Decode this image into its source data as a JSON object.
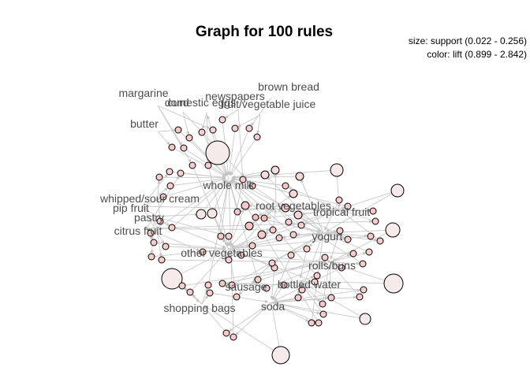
{
  "title": "Graph for 100 rules",
  "legend": {
    "size_line": "size: support (0.022 - 0.256)",
    "color_line": "color: lift (0.899 - 2.842)"
  },
  "items": [
    "margarine",
    "curd",
    "domestic eggs",
    "newspapers",
    "fruit/vegetable juice",
    "brown bread",
    "butter",
    "whole milk",
    "whipped/sour cream",
    "pip fruit",
    "pastry",
    "citrus fruit",
    "root vegetables",
    "tropical fruit",
    "yogurt",
    "other vegetables",
    "rolls/buns",
    "bottled water",
    "sausage",
    "soda",
    "shopping bags"
  ],
  "colors": {
    "edge": "#c9c9c9",
    "node_low_lift": "#f7eded",
    "node_high_lift": "#f4a8a8",
    "label": "#4d4d4d"
  },
  "chart_data": {
    "type": "network",
    "title": "Graph for 100 rules",
    "size_measure": "support",
    "size_range": [
      0.022,
      0.256
    ],
    "color_measure": "lift",
    "color_range": [
      0.899,
      2.842
    ],
    "rule_count": 100
  }
}
